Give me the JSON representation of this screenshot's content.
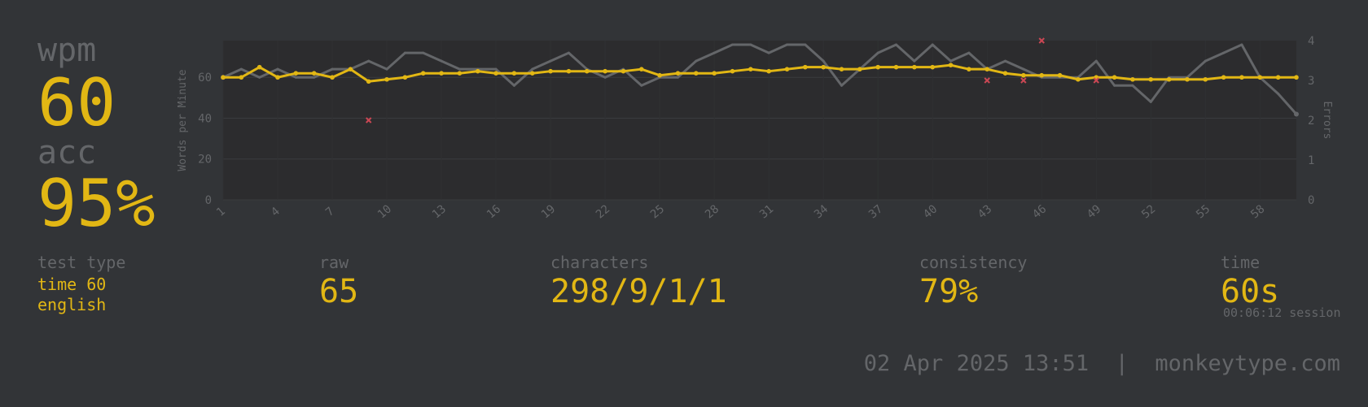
{
  "summary": {
    "wpm_label": "wpm",
    "wpm_value": "60",
    "acc_label": "acc",
    "acc_value": "95%"
  },
  "stats": {
    "test_type_label": "test type",
    "test_type_line1": "time 60",
    "test_type_line2": "english",
    "raw_label": "raw",
    "raw_value": "65",
    "characters_label": "characters",
    "characters_value": "298/9/1/1",
    "consistency_label": "consistency",
    "consistency_value": "79%",
    "time_label": "time",
    "time_value": "60s",
    "session_value": "00:06:12 session"
  },
  "footer": {
    "date": "02 Apr 2025 13:51",
    "separator": "|",
    "site": "monkeytype.com"
  },
  "colors": {
    "background": "#323437",
    "plot_background": "#2c2c2e",
    "accent": "#e2b714",
    "raw_line": "#646669",
    "error": "#ca4754",
    "subtle_text": "#646669"
  },
  "chart_data": {
    "type": "line",
    "ylabel": "Words per Minute",
    "y2label": "Errors",
    "ylim": [
      0,
      78
    ],
    "y_ticks": [
      0,
      20,
      40,
      60
    ],
    "y2lim": [
      0,
      4
    ],
    "y2_ticks": [
      0,
      1,
      2,
      3,
      4
    ],
    "x_ticks": [
      "1",
      "4",
      "7",
      "10",
      "13",
      "16",
      "19",
      "22",
      "25",
      "28",
      "31",
      "34",
      "37",
      "40",
      "43",
      "46",
      "49",
      "52",
      "55",
      "58"
    ],
    "x": [
      1,
      2,
      3,
      4,
      5,
      6,
      7,
      8,
      9,
      10,
      11,
      12,
      13,
      14,
      15,
      16,
      17,
      18,
      19,
      20,
      21,
      22,
      23,
      24,
      25,
      26,
      27,
      28,
      29,
      30,
      31,
      32,
      33,
      34,
      35,
      36,
      37,
      38,
      39,
      40,
      41,
      42,
      43,
      44,
      45,
      46,
      47,
      48,
      49,
      50,
      51,
      52,
      53,
      54,
      55,
      56,
      57,
      58,
      59,
      60
    ],
    "grid": true,
    "series": [
      {
        "name": "wpm",
        "axis": "left",
        "values": [
          60,
          60,
          65,
          60,
          62,
          62,
          60,
          64,
          58,
          59,
          60,
          62,
          62,
          62,
          63,
          62,
          62,
          62,
          63,
          63,
          63,
          63,
          63,
          64,
          61,
          62,
          62,
          62,
          63,
          64,
          63,
          64,
          65,
          65,
          64,
          64,
          65,
          65,
          65,
          65,
          66,
          64,
          64,
          62,
          61,
          61,
          61,
          59,
          60,
          60,
          59,
          59,
          59,
          59,
          59,
          60,
          60,
          60,
          60,
          60
        ]
      },
      {
        "name": "raw",
        "axis": "left",
        "values": [
          60,
          64,
          60,
          64,
          60,
          60,
          64,
          64,
          68,
          64,
          72,
          72,
          68,
          64,
          64,
          64,
          56,
          64,
          68,
          72,
          64,
          60,
          64,
          56,
          60,
          60,
          68,
          72,
          76,
          76,
          72,
          76,
          76,
          68,
          56,
          64,
          72,
          76,
          68,
          76,
          68,
          72,
          64,
          68,
          64,
          60,
          60,
          60,
          68,
          56,
          56,
          48,
          60,
          60,
          68,
          72,
          76,
          60,
          52,
          42
        ]
      },
      {
        "name": "errors",
        "axis": "right",
        "type": "scatter",
        "x": [
          9,
          43,
          45,
          46,
          49
        ],
        "values": [
          2,
          3,
          3,
          4,
          3
        ]
      }
    ]
  }
}
